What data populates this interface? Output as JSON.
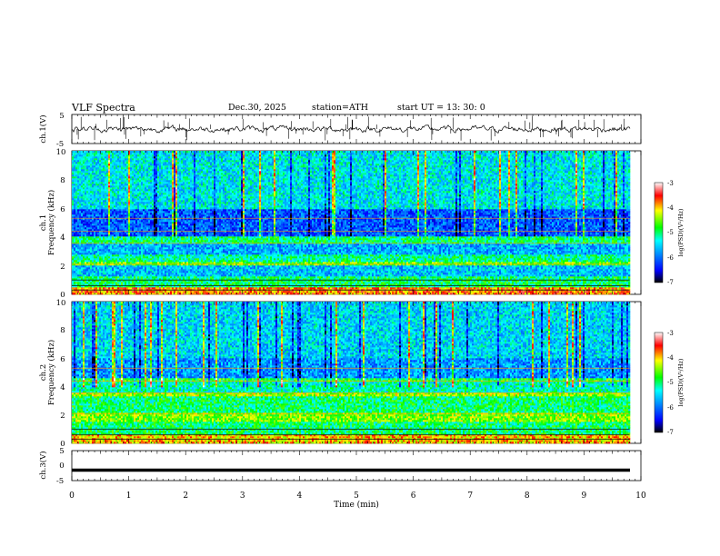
{
  "header": {
    "title": "VLF  Spectra",
    "date": "Dec.30, 2025",
    "station": "station=ATH",
    "start": "start  UT  =    13: 30: 0"
  },
  "chart_data": [
    {
      "type": "line",
      "name": "ch.1 waveform",
      "ylabel": "ch.1(V)",
      "ylim": [
        -5,
        5
      ],
      "yticks": [
        "5",
        "-5"
      ],
      "xlim": [
        0,
        10
      ],
      "approx_level": 0,
      "approx_range": [
        -1.5,
        1.5
      ]
    },
    {
      "type": "heatmap",
      "name": "ch.1 spectrogram",
      "ylabel": "ch.1\nFrequency  (kHz)",
      "ylim": [
        0,
        10
      ],
      "yticks": [
        "0",
        "2",
        "4",
        "6",
        "8",
        "10"
      ],
      "xlim": [
        0,
        9.8
      ],
      "colorbar": {
        "label": "log(PSD)(V²/Hz)",
        "range": [
          -7,
          -3
        ],
        "ticks": [
          "-3",
          "-4",
          "-5",
          "-6",
          "-7"
        ],
        "colors": [
          "#000000",
          "#0000ff",
          "#00ff00",
          "#ffff00",
          "#ff0000",
          "#ffffff"
        ]
      },
      "bands_khz": [
        {
          "from": 0.0,
          "to": 0.5,
          "level": -3.8
        },
        {
          "from": 0.5,
          "to": 1.3,
          "level": -5.0
        },
        {
          "from": 1.3,
          "to": 2.0,
          "level": -5.6
        },
        {
          "from": 2.0,
          "to": 2.3,
          "level": -4.6
        },
        {
          "from": 2.3,
          "to": 2.8,
          "level": -5.1
        },
        {
          "from": 2.8,
          "to": 3.5,
          "level": -5.7
        },
        {
          "from": 3.5,
          "to": 4.0,
          "level": -5.0
        },
        {
          "from": 4.0,
          "to": 6.0,
          "level": -6.1
        },
        {
          "from": 6.0,
          "to": 10.0,
          "level": -5.4
        }
      ]
    },
    {
      "type": "heatmap",
      "name": "ch.2 spectrogram",
      "ylabel": "ch.2\nFrequency  (kHz)",
      "ylim": [
        0,
        10
      ],
      "yticks": [
        "0",
        "2",
        "4",
        "6",
        "8",
        "10"
      ],
      "xlim": [
        0,
        9.8
      ],
      "colorbar": {
        "label": "log(PSD)(V²/Hz)",
        "range": [
          -7,
          -3
        ],
        "ticks": [
          "-3",
          "-4",
          "-5",
          "-6",
          "-7"
        ],
        "colors": [
          "#000000",
          "#0000ff",
          "#00ff00",
          "#ffff00",
          "#ff0000",
          "#ffffff"
        ]
      },
      "bands_khz": [
        {
          "from": 0.0,
          "to": 0.6,
          "level": -4.0
        },
        {
          "from": 0.6,
          "to": 1.6,
          "level": -5.0
        },
        {
          "from": 1.6,
          "to": 2.2,
          "level": -4.5
        },
        {
          "from": 2.2,
          "to": 3.3,
          "level": -5.0
        },
        {
          "from": 3.3,
          "to": 3.6,
          "level": -4.4
        },
        {
          "from": 3.6,
          "to": 4.3,
          "level": -5.2
        },
        {
          "from": 4.3,
          "to": 4.6,
          "level": -4.8
        },
        {
          "from": 4.6,
          "to": 6.0,
          "level": -5.8
        },
        {
          "from": 6.0,
          "to": 10.0,
          "level": -5.5
        }
      ]
    },
    {
      "type": "line",
      "name": "ch.3 waveform",
      "ylabel": "ch.3(V)",
      "ylim": [
        -5,
        5
      ],
      "yticks": [
        "5",
        "0",
        "-5"
      ],
      "xlim": [
        0,
        10
      ],
      "approx_level": -1.5
    }
  ],
  "x_axis": {
    "label": "Time  (min)",
    "ticks": [
      "0",
      "1",
      "2",
      "3",
      "4",
      "5",
      "6",
      "7",
      "8",
      "9",
      "10"
    ]
  }
}
